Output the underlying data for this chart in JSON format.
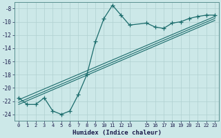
{
  "xlabel": "Humidex (Indice chaleur)",
  "background_color": "#cce8e8",
  "grid_color": "#b0d0d0",
  "line_color": "#1a6b6b",
  "xlim": [
    -0.5,
    23.5
  ],
  "ylim": [
    -25,
    -7
  ],
  "xticks": [
    0,
    1,
    2,
    3,
    4,
    5,
    6,
    7,
    8,
    9,
    10,
    11,
    12,
    13,
    15,
    16,
    17,
    18,
    19,
    20,
    21,
    22,
    23
  ],
  "yticks": [
    -8,
    -10,
    -12,
    -14,
    -16,
    -18,
    -20,
    -22,
    -24
  ],
  "main_x": [
    0,
    1,
    2,
    3,
    4,
    5,
    6,
    7,
    8,
    9,
    10,
    11,
    12,
    13,
    15,
    16,
    17,
    18,
    19,
    20,
    21,
    22,
    23
  ],
  "main_y": [
    -21.5,
    -22.5,
    -22.5,
    -21.5,
    -23.5,
    -24.0,
    -23.5,
    -21.0,
    -18.0,
    -13.0,
    -9.5,
    -7.5,
    -9.0,
    -10.5,
    -10.2,
    -10.8,
    -11.0,
    -10.2,
    -10.0,
    -9.5,
    -9.2,
    -9.0,
    -9.0
  ],
  "trend1_x": [
    0,
    23
  ],
  "trend1_y": [
    -21.8,
    -9.2
  ],
  "trend2_x": [
    0,
    23
  ],
  "trend2_y": [
    -22.2,
    -9.5
  ],
  "trend3_x": [
    0,
    23
  ],
  "trend3_y": [
    -22.5,
    -9.8
  ]
}
